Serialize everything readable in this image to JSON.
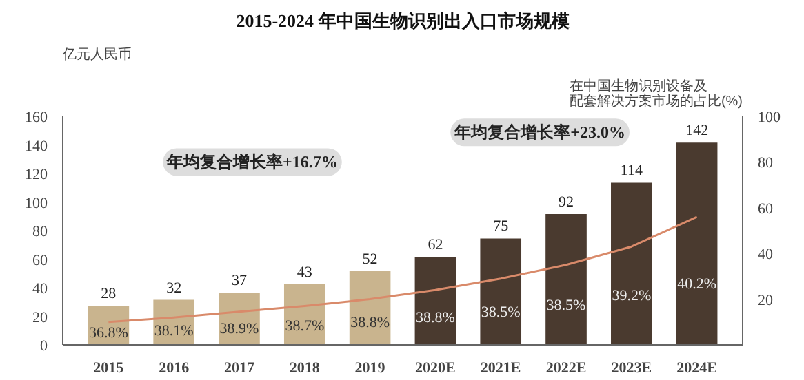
{
  "chart_data": {
    "type": "bar",
    "title": "2015-2024 年中国生物识别出入口市场规模",
    "ylabel": "亿元人民币",
    "y2label": "在中国生物识别设备及配套解决方案市场的占比(%)",
    "categories": [
      "2015",
      "2016",
      "2017",
      "2018",
      "2019",
      "2020E",
      "2021E",
      "2022E",
      "2023E",
      "2024E"
    ],
    "series": [
      {
        "values": [
          28,
          32,
          37,
          43,
          52,
          62,
          75,
          92,
          114,
          142
        ],
        "value_labels": [
          "28",
          "32",
          "37",
          "43",
          "52",
          "62",
          "75",
          "92",
          "114",
          "142"
        ],
        "colors": [
          "#c9b48e",
          "#c9b48e",
          "#c9b48e",
          "#c9b48e",
          "#c9b48e",
          "#4a3a2f",
          "#4a3a2f",
          "#4a3a2f",
          "#4a3a2f",
          "#4a3a2f"
        ]
      },
      {
        "type": "line",
        "axis": "y2",
        "color": "#d98a6a",
        "values": [
          10,
          12,
          14.5,
          17,
          20,
          24,
          29,
          35,
          43,
          56
        ]
      }
    ],
    "ylim": [
      0,
      160
    ],
    "yticks": [
      0,
      20,
      40,
      60,
      80,
      100,
      120,
      140,
      160
    ],
    "y2lim": [
      0,
      100
    ],
    "y2ticks": [
      20,
      40,
      60,
      80,
      100
    ],
    "grid": false,
    "annotations": [
      "年均复合增长率+16.7%",
      "年均复合增长率+23.0%",
      "36.8%",
      "38.1%",
      "38.9%",
      "38.7%",
      "38.8%",
      "38.8%",
      "38.5%",
      "38.5%",
      "39.2%",
      "40.2%"
    ]
  }
}
